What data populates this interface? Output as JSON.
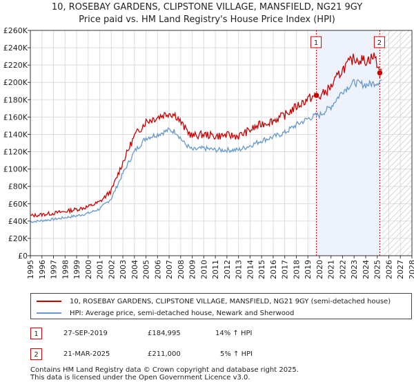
{
  "title_line1": "10, ROSEBAY GARDENS, CLIPSTONE VILLAGE, MANSFIELD, NG21 9GY",
  "title_line2": "Price paid vs. HM Land Registry's House Price Index (HPI)",
  "colors": {
    "price": "#cc0000",
    "hpi": "#6699cc",
    "sale_band": "#eef2fb",
    "future_hatch": "#cccccc",
    "grid": "#dddddd"
  },
  "legend": {
    "price_label": "10, ROSEBAY GARDENS, CLIPSTONE VILLAGE, MANSFIELD, NG21 9GY (semi-detached house)",
    "hpi_label": "HPI: Average price, semi-detached house, Newark and Sherwood"
  },
  "transactions": [
    {
      "num": "1",
      "date": "27-SEP-2019",
      "price": "£184,995",
      "hpi": "14% ↑ HPI"
    },
    {
      "num": "2",
      "date": "21-MAR-2025",
      "price": "£211,000",
      "hpi": "5% ↑ HPI"
    }
  ],
  "footer_line1": "Contains HM Land Registry data © Crown copyright and database right 2025.",
  "footer_line2": "This data is licensed under the Open Government Licence v3.0.",
  "chart_data": {
    "type": "line",
    "xlim": [
      1995,
      2028
    ],
    "ylim": [
      0,
      260000
    ],
    "x_ticks": [
      "1995",
      "1996",
      "1997",
      "1998",
      "1999",
      "2000",
      "2001",
      "2002",
      "2003",
      "2004",
      "2005",
      "2006",
      "2007",
      "2008",
      "2009",
      "2010",
      "2011",
      "2012",
      "2013",
      "2014",
      "2015",
      "2016",
      "2017",
      "2018",
      "2019",
      "2020",
      "2021",
      "2022",
      "2023",
      "2024",
      "2025",
      "2026",
      "2027",
      "2028"
    ],
    "y_ticks": [
      {
        "value": 0,
        "label": "£0"
      },
      {
        "value": 20000,
        "label": "£20K"
      },
      {
        "value": 40000,
        "label": "£40K"
      },
      {
        "value": 60000,
        "label": "£60K"
      },
      {
        "value": 80000,
        "label": "£80K"
      },
      {
        "value": 100000,
        "label": "£100K"
      },
      {
        "value": 120000,
        "label": "£120K"
      },
      {
        "value": 140000,
        "label": "£140K"
      },
      {
        "value": 160000,
        "label": "£160K"
      },
      {
        "value": 180000,
        "label": "£180K"
      },
      {
        "value": 200000,
        "label": "£200K"
      },
      {
        "value": 220000,
        "label": "£220K"
      },
      {
        "value": 240000,
        "label": "£240K"
      },
      {
        "value": 260000,
        "label": "£260K"
      }
    ],
    "series": [
      {
        "name": "10, ROSEBAY GARDENS, CLIPSTONE VILLAGE, MANSFIELD, NG21 9GY (semi-detached house)",
        "x": [
          1995,
          1996,
          1997,
          1998,
          1999,
          2000,
          2001,
          2002,
          2003,
          2004,
          2005,
          2006,
          2007,
          2007.6,
          2008.3,
          2009,
          2010,
          2011,
          2012,
          2013,
          2014,
          2015,
          2016,
          2017,
          2018,
          2019,
          2019.74,
          2020,
          2021,
          2022,
          2023,
          2024,
          2024.8,
          2025.22,
          2025.4
        ],
        "y": [
          46000,
          47500,
          49000,
          51000,
          53500,
          56500,
          62000,
          75000,
          108000,
          138000,
          155000,
          160000,
          165000,
          162000,
          148000,
          138000,
          140000,
          138000,
          139000,
          138000,
          145000,
          152000,
          156000,
          162000,
          172000,
          181000,
          184995,
          183000,
          195000,
          215000,
          228000,
          225000,
          230000,
          211000,
          210000
        ]
      },
      {
        "name": "HPI: Average price, semi-detached house, Newark and Sherwood",
        "x": [
          1995,
          1996,
          1997,
          1998,
          1999,
          2000,
          2001,
          2002,
          2003,
          2004,
          2005,
          2006,
          2007,
          2007.6,
          2008.3,
          2009,
          2010,
          2011,
          2012,
          2013,
          2014,
          2015,
          2016,
          2017,
          2018,
          2019,
          2019.74,
          2020,
          2021,
          2022,
          2023,
          2024,
          2025,
          2025.4
        ],
        "y": [
          39000,
          40500,
          42000,
          44000,
          46000,
          49000,
          54000,
          66000,
          95000,
          120000,
          136000,
          140000,
          145000,
          143000,
          130000,
          122000,
          124000,
          122000,
          122000,
          122000,
          127000,
          133000,
          137000,
          142000,
          151000,
          158000,
          162000,
          162000,
          172000,
          190000,
          200000,
          197000,
          200000,
          203000
        ]
      }
    ],
    "annotations": [
      {
        "label": "1",
        "x": 2019.74,
        "y": 184995
      },
      {
        "label": "2",
        "x": 2025.22,
        "y": 211000
      }
    ],
    "forecast_from": 2025.4
  }
}
